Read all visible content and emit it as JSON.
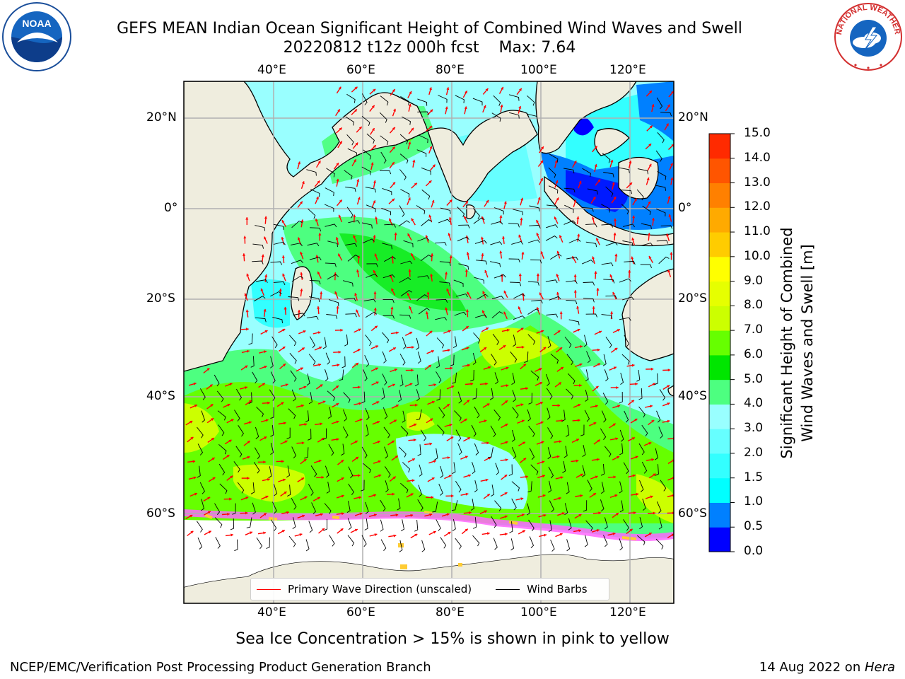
{
  "header": {
    "title_line1": "GEFS MEAN Indian Ocean Significant Height of Combined Wind Waves and Swell",
    "title_line2": "20220812 t12z 000h fcst    Max: 7.64"
  },
  "logos": {
    "left_icon": "noaa-logo",
    "left_text": "NOAA",
    "right_icon": "national-weather-service-logo",
    "right_text": "NATIONAL WEATHER SERVICE"
  },
  "map": {
    "lon_labels": [
      "40°E",
      "60°E",
      "80°E",
      "100°E",
      "120°E"
    ],
    "lat_labels_left": [
      "20°N",
      "0°",
      "20°S",
      "40°S",
      "60°S"
    ],
    "lat_labels_right": [
      "20°N",
      "0°",
      "20°S",
      "40°S",
      "60°S"
    ],
    "legend": {
      "wave_direction_label": "Primary Wave Direction (unscaled)",
      "wave_direction_color": "#ff0000",
      "wind_barbs_label": "Wind Barbs",
      "wind_barbs_color": "#000000"
    },
    "land_color": "#efedde",
    "sea_ice_colors": [
      "#ff66ff",
      "#ffcc33"
    ]
  },
  "colorbar": {
    "title_line1": "Significant Height of Combined",
    "title_line2": "Wind Waves and Swell [m]",
    "tick_labels": [
      "15.0",
      "14.0",
      "13.0",
      "12.0",
      "11.0",
      "10.0",
      "9.0",
      "8.0",
      "7.0",
      "6.0",
      "5.0",
      "4.0",
      "3.0",
      "2.0",
      "1.5",
      "1.0",
      "0.5",
      "0.0"
    ],
    "colors_bottom_to_top": [
      "#0000ff",
      "#0080ff",
      "#00ffff",
      "#33ffff",
      "#66ffff",
      "#99ffff",
      "#4dff80",
      "#00e600",
      "#66ff00",
      "#ccff00",
      "#e6ff00",
      "#ffff00",
      "#ffcc00",
      "#ffaa00",
      "#ff8000",
      "#ff5500",
      "#ff2a00"
    ]
  },
  "footer": {
    "caption": "Sea Ice Concentration > 15% is shown in pink to yellow",
    "credit": "NCEP/EMC/Verification Post Processing Product Generation Branch",
    "date_prefix": "14 Aug 2022 on ",
    "host": "Hera"
  }
}
